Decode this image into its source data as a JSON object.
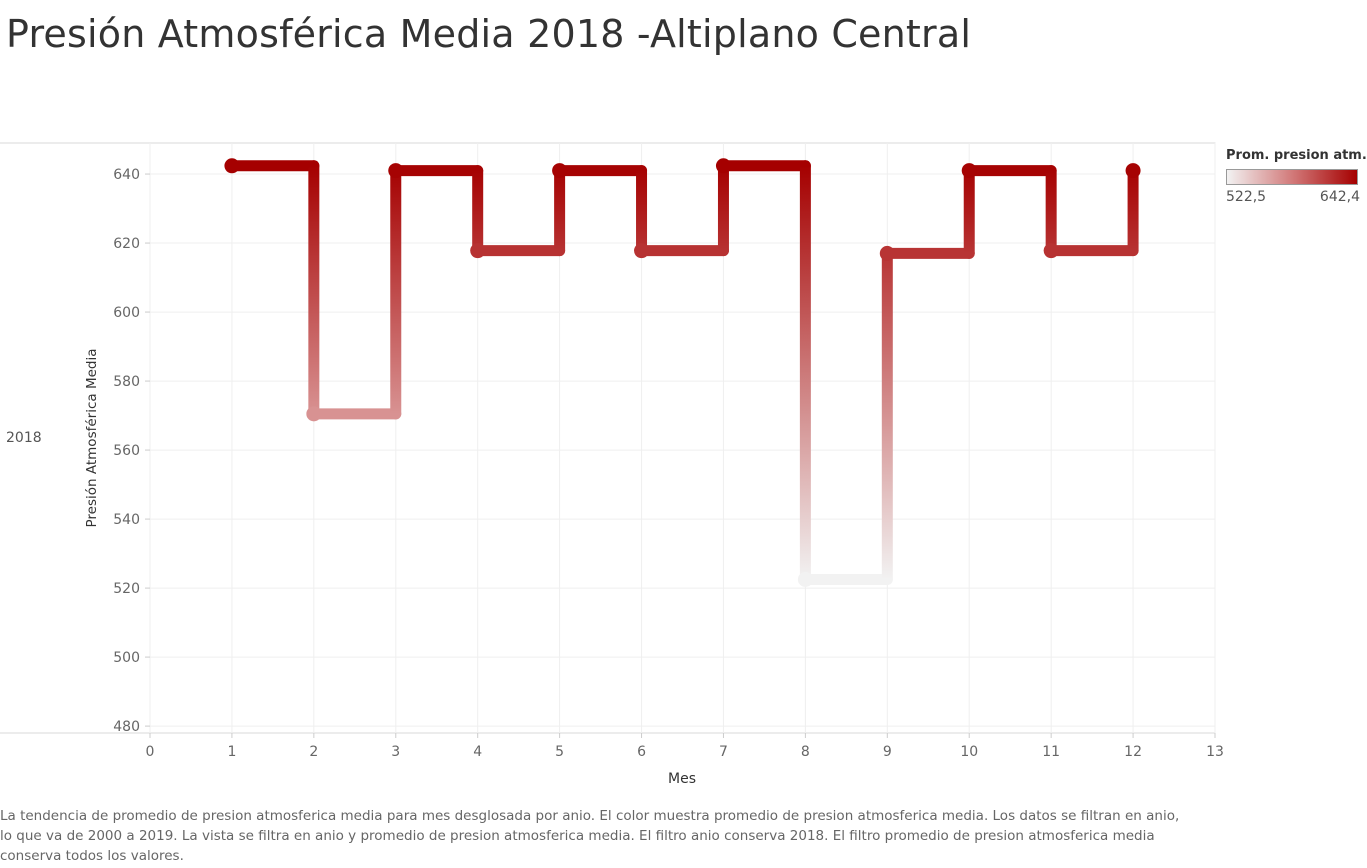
{
  "title": "Presión Atmosférica Media 2018 -Altiplano Central",
  "row_header": "2018",
  "legend": {
    "title": "Prom. presion atm..",
    "min_label": "522,5",
    "max_label": "642,4",
    "min_color": "#f2f2f2",
    "max_color": "#a50000"
  },
  "caption": "La tendencia de promedio de presion atmosferica media para mes desglosada por anio.  El color muestra promedio de presion atmosferica media. Los datos se filtran en anio, lo que va de 2000 a 2019. La vista se filtra en anio y promedio de presion atmosferica media. El filtro anio conserva 2018. El filtro promedio de presion atmosferica media conserva todos los valores.",
  "chart_data": {
    "type": "line",
    "line_style": "step",
    "title": "Presión Atmosférica Media 2018 -Altiplano Central",
    "xlabel": "Mes",
    "ylabel": "Presión Atmosférica Media",
    "xlim": [
      0,
      13
    ],
    "ylim": [
      478,
      649
    ],
    "x_ticks": [
      0,
      1,
      2,
      3,
      4,
      5,
      6,
      7,
      8,
      9,
      10,
      11,
      12,
      13
    ],
    "y_ticks": [
      480,
      500,
      520,
      540,
      560,
      580,
      600,
      620,
      640
    ],
    "grid": true,
    "color_range": [
      522.5,
      642.4
    ],
    "series": [
      {
        "x": [
          1,
          2,
          3,
          4,
          5,
          6,
          7,
          8,
          9,
          10,
          11,
          12
        ],
        "values": [
          642.4,
          570.5,
          641.0,
          617.8,
          641.0,
          617.8,
          642.4,
          522.5,
          617.0,
          641.0,
          617.8,
          641.0
        ]
      }
    ]
  }
}
